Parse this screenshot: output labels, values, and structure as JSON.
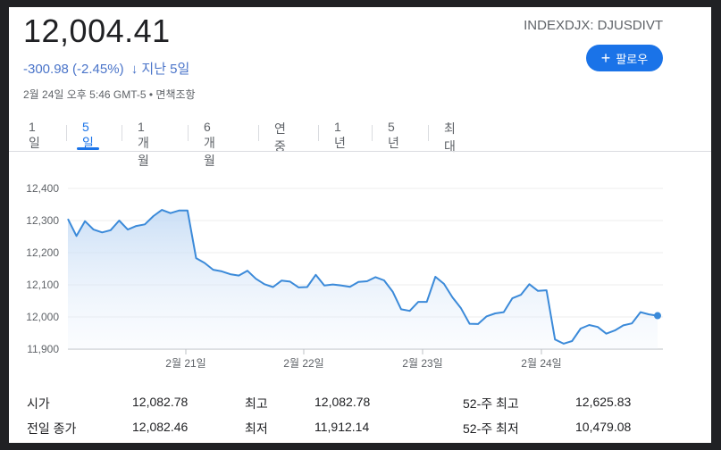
{
  "header": {
    "price": "12,004.41",
    "change": "-300.98 (-2.45%)",
    "arrow": "↓",
    "period": "지난 5일",
    "timestamp": "2월 24일 오후 5:46 GMT-5 • 면책조항",
    "ticker": "INDEXDJX: DJUSDIVT",
    "follow_label": "팔로우"
  },
  "tabs": [
    "1일",
    "5일",
    "1개월",
    "6개월",
    "연중",
    "1년",
    "5년",
    "최대"
  ],
  "active_tab": "5일",
  "colors": {
    "accent": "#1a73e8",
    "line": "#3b8ad9",
    "negative": "#4a74c9"
  },
  "stats": {
    "open_label": "시가",
    "open_value": "12,082.78",
    "prev_close_label": "전일 종가",
    "prev_close_value": "12,082.46",
    "high_label": "최고",
    "high_value": "12,082.78",
    "low_label": "최저",
    "low_value": "11,912.14",
    "wk52_high_label": "52-주 최고",
    "wk52_high_value": "12,625.83",
    "wk52_low_label": "52-주 최저",
    "wk52_low_value": "10,479.08"
  },
  "chart_data": {
    "type": "area",
    "title": "",
    "xlabel": "",
    "ylabel": "",
    "ylim": [
      11900,
      12400
    ],
    "yticks": [
      "12,400",
      "12,300",
      "12,200",
      "12,100",
      "12,000",
      "11,900"
    ],
    "xticks": [
      "2월 21일",
      "2월 22일",
      "2월 23일",
      "2월 24일"
    ],
    "series": [
      {
        "values": [
          12305,
          12252,
          12298,
          12272,
          12263,
          12270,
          12300,
          12272,
          12283,
          12288,
          12314,
          12333,
          12323,
          12331,
          12331,
          12183,
          12168,
          12147,
          12142,
          12133,
          12129,
          12144,
          12119,
          12102,
          12093,
          12113,
          12110,
          12092,
          12093,
          12131,
          12098,
          12101,
          12098,
          12094,
          12109,
          12111,
          12124,
          12114,
          12079,
          12024,
          12019,
          12047,
          12047,
          12125,
          12103,
          12061,
          12027,
          11979,
          11978,
          12002,
          12011,
          12015,
          12058,
          12069,
          12102,
          12081,
          12083,
          11930,
          11917,
          11925,
          11964,
          11975,
          11969,
          11948,
          11958,
          11974,
          11980,
          12015,
          12008,
          12004
        ]
      }
    ]
  }
}
